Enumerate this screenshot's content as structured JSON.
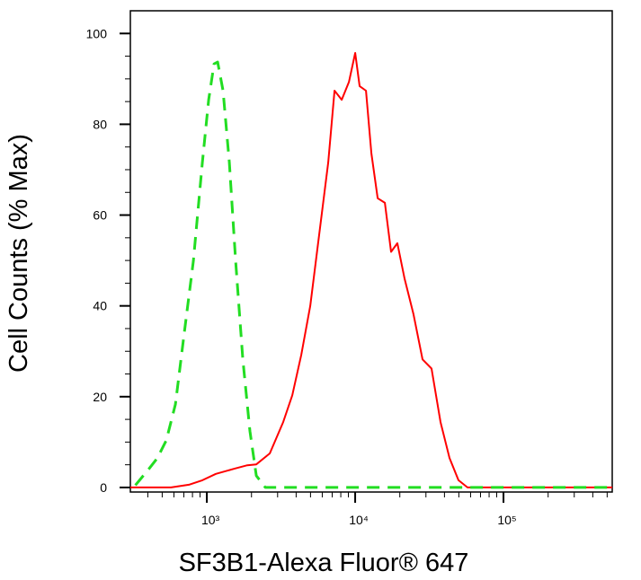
{
  "chart_data": {
    "type": "line",
    "xlabel": "SF3B1-Alexa Fluor® 647",
    "ylabel": "Cell Counts (% Max)",
    "xscale": "log",
    "xlim": [
      305,
      541000
    ],
    "ylim": [
      -1,
      105
    ],
    "xticks": [
      {
        "value": 1000,
        "label": "10³"
      },
      {
        "value": 10000,
        "label": "10⁴"
      },
      {
        "value": 100000,
        "label": "10⁵"
      }
    ],
    "xminorticks": [
      400,
      500,
      600,
      700,
      800,
      900,
      2000,
      3000,
      4000,
      5000,
      6000,
      7000,
      8000,
      9000,
      20000,
      30000,
      40000,
      50000,
      60000,
      70000,
      80000,
      90000,
      200000,
      300000,
      400000,
      500000
    ],
    "yticks": [
      0,
      20,
      40,
      60,
      80,
      100
    ],
    "yminorticks": [
      5,
      10,
      15,
      25,
      30,
      35,
      45,
      50,
      55,
      65,
      70,
      75,
      85,
      90,
      95
    ],
    "series": [
      {
        "color": "#ff0000",
        "dash": false,
        "x": [
          305,
          573,
          757,
          933,
          1150,
          1520,
          1874,
          2154,
          2656,
          3273,
          3765,
          4329,
          4977,
          5722,
          6579,
          7262,
          8111,
          9074,
          10000,
          10720,
          11830,
          12860,
          14180,
          15850,
          17470,
          19260,
          21540,
          24770,
          28480,
          32740,
          37650,
          43290,
          49770,
          57220,
          86900,
          541000
        ],
        "values": [
          0,
          0,
          0.6,
          1.6,
          3,
          4.1,
          4.9,
          5.1,
          7.5,
          14.4,
          20.3,
          29.2,
          40,
          55.8,
          71.6,
          87.4,
          85.4,
          89.3,
          95.7,
          88.4,
          87.4,
          73.6,
          63.7,
          62.7,
          51.9,
          53.8,
          46,
          38.1,
          28.2,
          26.2,
          14.4,
          6.5,
          1.6,
          0,
          0,
          0
        ]
      },
      {
        "color": "#22dd22",
        "dash": true,
        "x": [
          330,
          405,
          464,
          533,
          614,
          705,
          811,
          933,
          1028,
          1118,
          1182,
          1286,
          1418,
          1563,
          1747,
          1953,
          2154,
          2477,
          541000
        ],
        "values": [
          0.5,
          4,
          6.5,
          10.4,
          18.3,
          34.1,
          49.9,
          71.6,
          85.4,
          93.3,
          93.7,
          87.4,
          71.6,
          49.9,
          28.2,
          12.4,
          2.6,
          0,
          0
        ]
      }
    ]
  }
}
